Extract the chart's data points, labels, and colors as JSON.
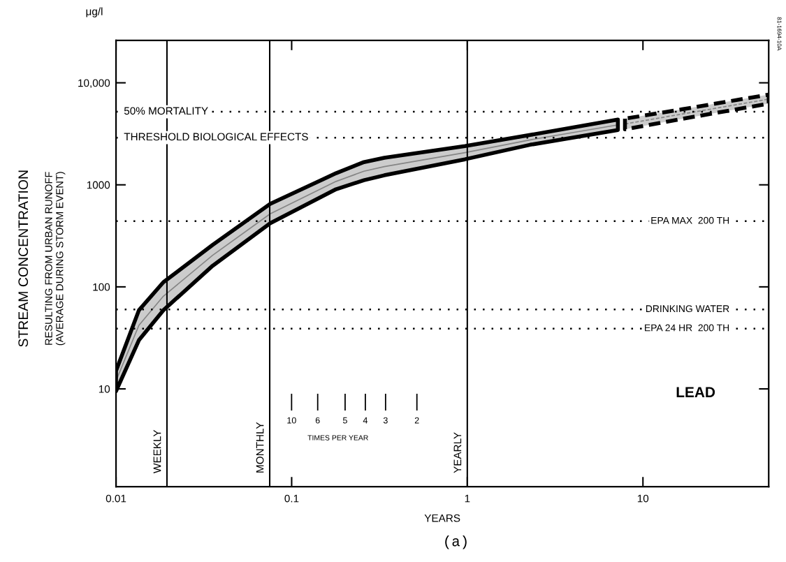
{
  "chart_data": {
    "type": "line",
    "xlabel": "YEARS",
    "log": "xy",
    "xlim": [
      0.01,
      52
    ],
    "xticks": [
      0.01,
      0.1,
      1,
      10
    ],
    "ylim": [
      1.1,
      26000
    ],
    "yticks": [
      10,
      100,
      1000,
      {
        "value": 10000,
        "label": "10,000"
      }
    ],
    "grid": false,
    "legend": false,
    "marker": "none",
    "series": [
      {
        "color": "#000000",
        "line_style": "solid",
        "x": [
          0.01,
          0.0135,
          0.0186,
          0.0355,
          0.0755,
          0.179,
          0.258,
          0.337,
          0.97,
          2.28,
          7.2
        ],
        "values": [
          12,
          42,
          81,
          204,
          520,
          1080,
          1360,
          1510,
          2070,
          2760,
          3870
        ],
        "lower": [
          9.5,
          30,
          59,
          161,
          420,
          905,
          1110,
          1240,
          1780,
          2470,
          3440
        ],
        "upper": [
          15,
          59,
          111,
          258,
          650,
          1300,
          1670,
          1840,
          2400,
          3080,
          4360
        ]
      },
      {
        "color": "#000000",
        "line_style": "dashed",
        "x": [
          7.9,
          16.7,
          52
        ],
        "values": [
          3950,
          4940,
          6920
        ],
        "lower": [
          3500,
          4430,
          6250
        ],
        "upper": [
          4450,
          5500,
          7660
        ]
      }
    ],
    "ref_lines": [
      {
        "axis": "y",
        "value": 5200,
        "label": "50% MORTALITY",
        "line_style": "dotted"
      },
      {
        "axis": "y",
        "value": 2900,
        "label": "THRESHOLD BIOLOGICAL EFFECTS",
        "line_style": "dotted"
      },
      {
        "axis": "y",
        "value": 440,
        "label": "EPA MAX  200 TH",
        "line_style": "dotted"
      },
      {
        "axis": "y",
        "value": 60,
        "label": "DRINKING WATER",
        "line_style": "dotted"
      },
      {
        "axis": "y",
        "value": 39,
        "label": "EPA 24 HR  200 TH",
        "line_style": "dotted"
      },
      {
        "axis": "x",
        "value": 0.0195,
        "label": "WEEKLY",
        "line_style": "solid"
      },
      {
        "axis": "x",
        "value": 0.075,
        "label": "MONTHLY",
        "line_style": "solid"
      },
      {
        "axis": "x",
        "value": 1,
        "label": "YEARLY",
        "line_style": "solid"
      }
    ],
    "annotations": [
      "μg/l",
      "STREAM CONCENTRATION",
      "RESULTING FROM URBAN RUNOFF\n(AVERAGE DURING STORM EVENT)",
      "LEAD",
      "TIMES PER YEAR",
      "(a)",
      "81-1694-10A",
      "10",
      "6",
      "5",
      "4",
      "3",
      "2"
    ]
  }
}
